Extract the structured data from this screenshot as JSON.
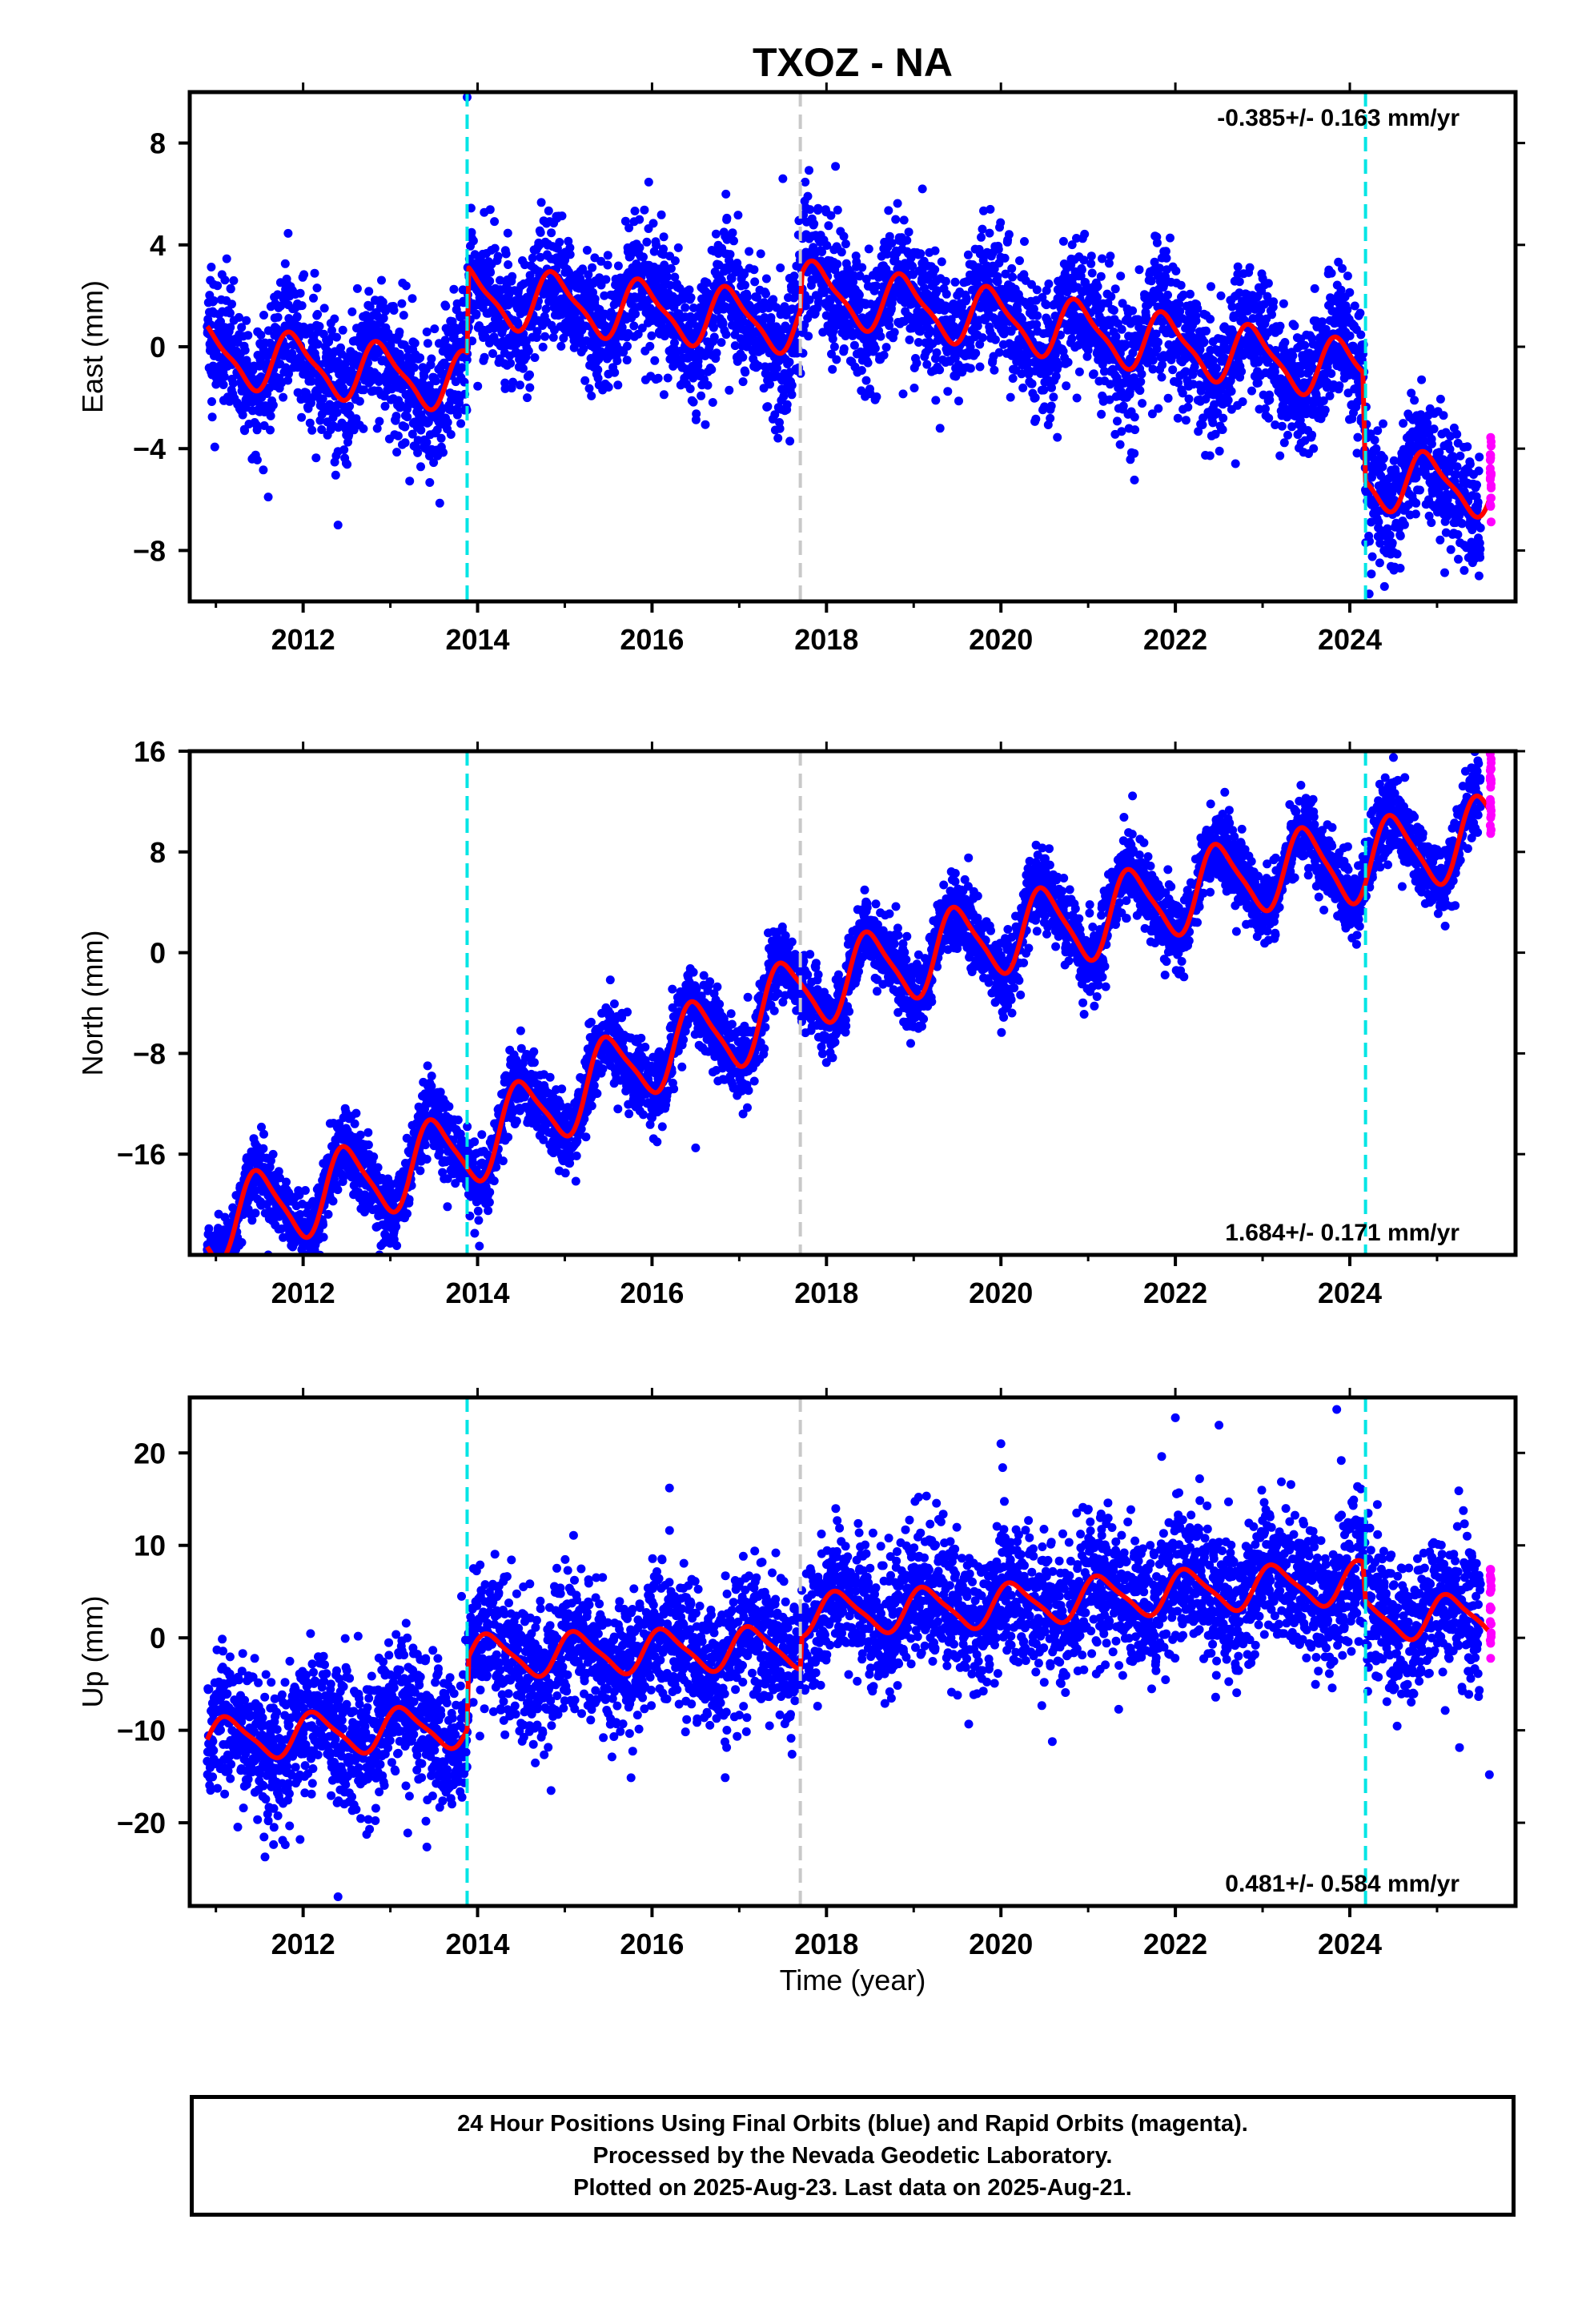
{
  "title": "TXOZ - NA",
  "colors": {
    "final_orbits": "#0000ff",
    "rapid_orbits": "#ff00ff",
    "model_fit": "#ff0000",
    "equipment_change": "#00e5e5",
    "other_change": "#c8c8c8"
  },
  "xlabel": "Time (year)",
  "footer": {
    "line1": "24 Hour Positions Using Final Orbits (blue) and Rapid Orbits (magenta).",
    "line2": "Processed by the Nevada Geodetic Laboratory.",
    "line3": "Plotted on 2025-Aug-23. Last data on 2025-Aug-21."
  },
  "chart_data": [
    {
      "type": "scatter",
      "component": "east",
      "ylabel": "East (mm)",
      "xlim": [
        2010.7,
        2025.9
      ],
      "ylim": [
        -10,
        10
      ],
      "xticks": [
        2012,
        2014,
        2016,
        2018,
        2020,
        2022,
        2024
      ],
      "yticks": [
        -8,
        -4,
        0,
        4,
        8
      ],
      "rate_label": "-0.385+/- 0.163 mm/yr",
      "rate_position": "top-right",
      "x_start": 2010.9,
      "x_end": 2025.62,
      "rapid_start": 2025.5,
      "model": {
        "anchors": [
          [
            2010.9,
            -0.3
          ],
          [
            2013.88,
            -1.4
          ],
          [
            2013.9,
            2.0
          ],
          [
            2017.7,
            0.9
          ],
          [
            2017.72,
            2.2
          ],
          [
            2024.15,
            -1.0
          ],
          [
            2024.18,
            -5.2
          ],
          [
            2025.62,
            -5.5
          ]
        ],
        "annual_amp": 1.1,
        "annual_phase": 0.65,
        "semiannual_amp": 0.3,
        "scatter_sigma": 1.3
      },
      "offset_lines": [
        {
          "x": 2013.88,
          "kind": "equipment_change"
        },
        {
          "x": 2017.7,
          "kind": "other_change"
        },
        {
          "x": 2024.18,
          "kind": "equipment_change"
        }
      ],
      "outliers": [
        [
          2013.88,
          9.8
        ],
        [
          2017.5,
          6.6
        ],
        [
          2019.1,
          6.2
        ],
        [
          2011.6,
          -5.9
        ],
        [
          2012.4,
          -7.0
        ]
      ]
    },
    {
      "type": "scatter",
      "component": "north",
      "ylabel": "North (mm)",
      "xlim": [
        2010.7,
        2025.9
      ],
      "ylim": [
        -24,
        16
      ],
      "xticks": [
        2012,
        2014,
        2016,
        2018,
        2020,
        2022,
        2024
      ],
      "yticks": [
        -16,
        -8,
        0,
        8,
        16
      ],
      "rate_label": "1.684+/- 0.171 mm/yr",
      "rate_position": "bottom-right",
      "x_start": 2010.9,
      "x_end": 2025.62,
      "rapid_start": 2025.5,
      "model": {
        "anchors": [
          [
            2010.9,
            -21.5
          ],
          [
            2012.0,
            -19.5
          ],
          [
            2013.0,
            -17.5
          ],
          [
            2013.88,
            -15.5
          ],
          [
            2015.0,
            -11.5
          ],
          [
            2016.0,
            -8.0
          ],
          [
            2017.0,
            -6.0
          ],
          [
            2017.7,
            -3.0
          ],
          [
            2019.0,
            -0.5
          ],
          [
            2020.0,
            1.5
          ],
          [
            2021.0,
            2.5
          ],
          [
            2022.0,
            4.5
          ],
          [
            2023.0,
            6.5
          ],
          [
            2024.0,
            7.0
          ],
          [
            2025.62,
            9.5
          ]
        ],
        "annual_amp": 3.0,
        "annual_phase": 0.25,
        "semiannual_amp": 0.6,
        "scatter_sigma": 1.5
      },
      "offset_lines": [
        {
          "x": 2013.88,
          "kind": "equipment_change"
        },
        {
          "x": 2017.7,
          "kind": "other_change"
        },
        {
          "x": 2024.18,
          "kind": "equipment_change"
        }
      ],
      "outliers": [
        [
          2024.5,
          15.5
        ],
        [
          2016.5,
          -15.5
        ],
        [
          2011.6,
          -24.0
        ]
      ]
    },
    {
      "type": "scatter",
      "component": "up",
      "ylabel": "Up (mm)",
      "xlim": [
        2010.7,
        2025.9
      ],
      "ylim": [
        -29,
        26
      ],
      "xticks": [
        2012,
        2014,
        2016,
        2018,
        2020,
        2022,
        2024
      ],
      "yticks": [
        -20,
        -10,
        0,
        10,
        20
      ],
      "rate_label": "0.481+/- 0.584 mm/yr",
      "rate_position": "bottom-right",
      "x_start": 2010.9,
      "x_end": 2025.62,
      "rapid_start": 2025.5,
      "model": {
        "anchors": [
          [
            2010.9,
            -11.0
          ],
          [
            2013.88,
            -9.5
          ],
          [
            2013.9,
            -2.0
          ],
          [
            2017.7,
            -1.0
          ],
          [
            2017.72,
            2.5
          ],
          [
            2020.0,
            3.5
          ],
          [
            2022.0,
            5.0
          ],
          [
            2024.15,
            6.0
          ],
          [
            2024.18,
            2.0
          ],
          [
            2025.62,
            2.5
          ]
        ],
        "annual_amp": 2.2,
        "annual_phase": 0.9,
        "semiannual_amp": 0.5,
        "scatter_sigma": 3.8
      },
      "offset_lines": [
        {
          "x": 2013.88,
          "kind": "equipment_change"
        },
        {
          "x": 2017.7,
          "kind": "other_change"
        },
        {
          "x": 2024.18,
          "kind": "equipment_change"
        }
      ],
      "outliers": [
        [
          2023.85,
          24.7
        ],
        [
          2022.0,
          23.8
        ],
        [
          2022.5,
          23.0
        ],
        [
          2012.4,
          -28.0
        ],
        [
          2025.6,
          -14.8
        ],
        [
          2016.2,
          16.2
        ],
        [
          2020.0,
          21.0
        ]
      ]
    }
  ]
}
